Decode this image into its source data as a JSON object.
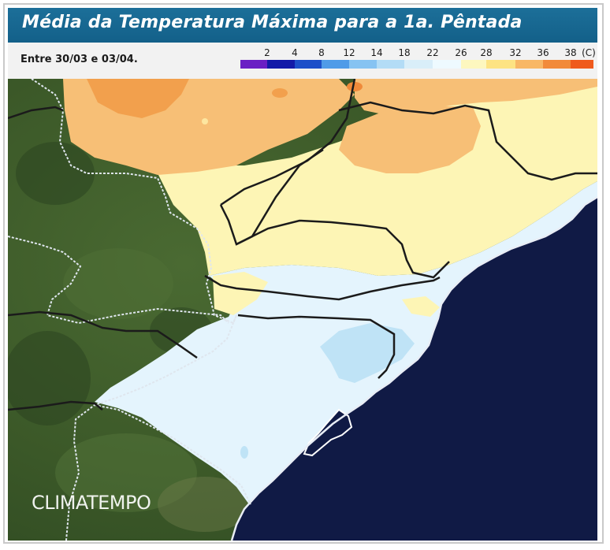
{
  "title": "Média da Temperatura Máxima para a 1a. Pêntada",
  "period": "Entre 30/03 e 03/04.",
  "legend": {
    "labels": [
      "2",
      "4",
      "8",
      "12",
      "14",
      "18",
      "22",
      "26",
      "28",
      "32",
      "36",
      "38"
    ],
    "unit": "(C)",
    "colors": [
      "#6a1fc4",
      "#131aa8",
      "#1d4fc9",
      "#4f9be8",
      "#86c3f2",
      "#b3dcf6",
      "#d9eef9",
      "#eefaff",
      "#fdf7bf",
      "#fde383",
      "#f8b766",
      "#f28a3a",
      "#ef5a1d"
    ]
  },
  "brand": "CLIMATEMPO",
  "colors": {
    "ocean": "#101a45",
    "land_vegetation": "#3c5a2a",
    "temp_light_blue": "#e6f5fd",
    "temp_pale_yellow": "#fdf5b3",
    "temp_orange": "#f6be73"
  }
}
